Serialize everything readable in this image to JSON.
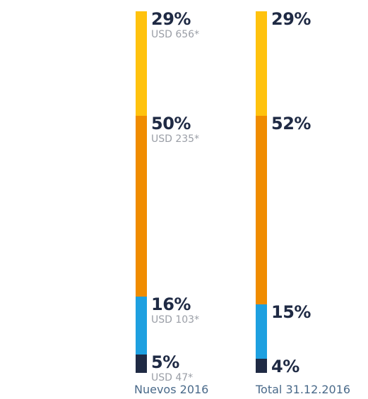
{
  "chart_data": {
    "type": "stacked-bar",
    "categories": [
      "Nuevos 2016",
      "Total 31.12.2016"
    ],
    "series": [
      {
        "color": "#ffc20e",
        "values": [
          29,
          29
        ],
        "labels": [
          "29%",
          "29%"
        ],
        "amounts": [
          "USD 656*",
          ""
        ]
      },
      {
        "color": "#f08c00",
        "values": [
          50,
          52
        ],
        "labels": [
          "50%",
          "52%"
        ],
        "amounts": [
          "USD 235*",
          ""
        ]
      },
      {
        "color": "#1ea0e0",
        "values": [
          16,
          15
        ],
        "labels": [
          "16%",
          "15%"
        ],
        "amounts": [
          "USD 103*",
          ""
        ]
      },
      {
        "color": "#1f2a44",
        "values": [
          5,
          4
        ],
        "labels": [
          "5%",
          "4%"
        ],
        "amounts": [
          "USD 47*",
          ""
        ]
      }
    ]
  }
}
